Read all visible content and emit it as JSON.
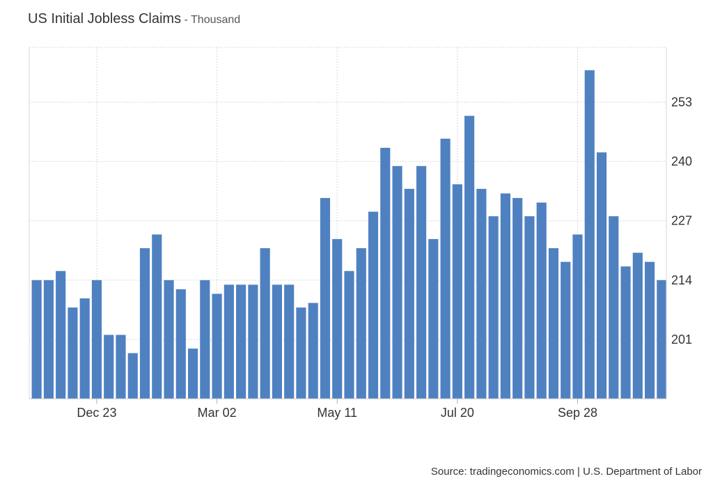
{
  "chart_data": {
    "type": "bar",
    "title": "US Initial Jobless Claims",
    "subtitle": "- Thousand",
    "xlabel": "",
    "ylabel": "",
    "x_tick_labels": [
      "Dec 23",
      "Mar 02",
      "May 11",
      "Jul 20",
      "Sep 28"
    ],
    "y_ticks": [
      201,
      214,
      227,
      240,
      253
    ],
    "ylim": [
      188,
      265
    ],
    "grid": true,
    "y_axis_side": "right",
    "bar_color": "#4f81c1",
    "values": [
      214,
      214,
      216,
      208,
      210,
      214,
      202,
      202,
      198,
      221,
      224,
      214,
      212,
      199,
      214,
      211,
      213,
      213,
      213,
      221,
      213,
      213,
      208,
      209,
      232,
      223,
      216,
      221,
      229,
      243,
      239,
      234,
      239,
      223,
      245,
      235,
      250,
      234,
      228,
      233,
      232,
      228,
      231,
      221,
      218,
      224,
      260,
      242,
      228,
      217,
      220,
      218,
      214
    ]
  },
  "source": "Source: tradingeconomics.com | U.S. Department of Labor"
}
